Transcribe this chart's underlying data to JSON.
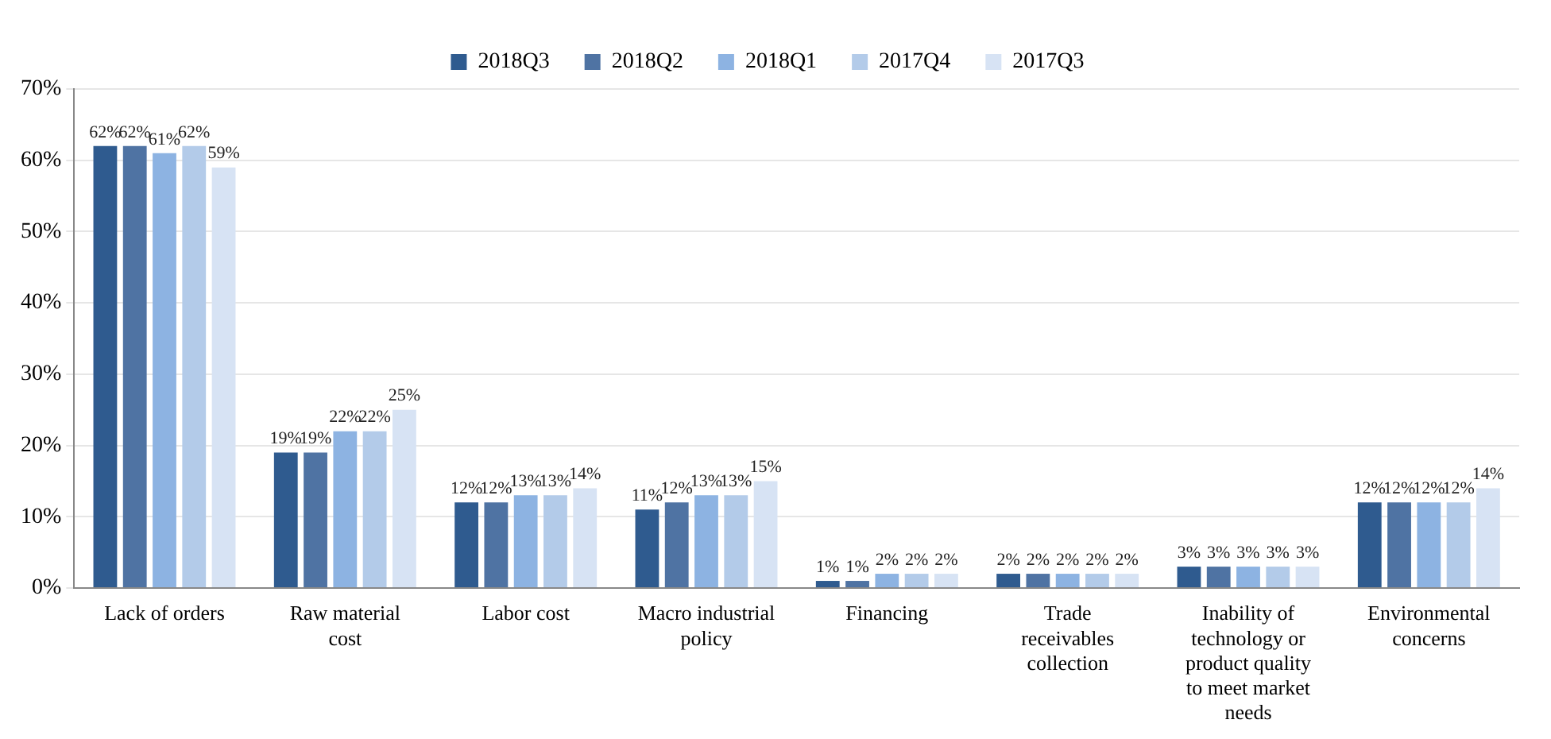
{
  "chart_data": {
    "type": "bar",
    "categories": [
      "Lack of orders",
      "Raw material cost",
      "Labor cost",
      "Macro industrial policy",
      "Financing",
      "Trade receivables collection",
      "Inability of technology or product quality to meet market needs",
      "Environmental concerns"
    ],
    "series": [
      {
        "name": "2018Q3",
        "color": "#2f5b8f",
        "values": [
          62,
          19,
          12,
          11,
          1,
          2,
          3,
          12
        ],
        "value_labels": [
          "62%",
          "19%",
          "12%",
          "11%",
          "1%",
          "2%",
          "3%",
          "12%"
        ]
      },
      {
        "name": "2018Q2",
        "color": "#4f73a3",
        "values": [
          62,
          19,
          12,
          12,
          1,
          2,
          3,
          12
        ],
        "value_labels": [
          "62%",
          "19%",
          "12%",
          "12%",
          "1%",
          "2%",
          "3%",
          "12%"
        ]
      },
      {
        "name": "2018Q1",
        "color": "#8db3e2",
        "values": [
          61,
          22,
          13,
          13,
          2,
          2,
          3,
          12
        ],
        "value_labels": [
          "61%",
          "22%",
          "13%",
          "13%",
          "2%",
          "2%",
          "3%",
          "12%"
        ]
      },
      {
        "name": "2017Q4",
        "color": "#b3cbe9",
        "values": [
          62,
          22,
          13,
          13,
          2,
          2,
          3,
          12
        ],
        "value_labels": [
          "62%",
          "22%",
          "13%",
          "13%",
          "2%",
          "2%",
          "3%",
          "12%"
        ]
      },
      {
        "name": "2017Q3",
        "color": "#d7e3f4",
        "values": [
          59,
          25,
          14,
          15,
          2,
          2,
          3,
          14
        ],
        "value_labels": [
          "59%",
          "25%",
          "14%",
          "15%",
          "2%",
          "2%",
          "3%",
          "14%"
        ]
      }
    ],
    "ylim": [
      0,
      70
    ],
    "yticks": [
      {
        "value": 0,
        "label": "0%"
      },
      {
        "value": 10,
        "label": "10%"
      },
      {
        "value": 20,
        "label": "20%"
      },
      {
        "value": 30,
        "label": "30%"
      },
      {
        "value": 40,
        "label": "40%"
      },
      {
        "value": 50,
        "label": "50%"
      },
      {
        "value": 60,
        "label": "60%"
      },
      {
        "value": 70,
        "label": "70%"
      }
    ],
    "grid": "y",
    "legend": "top"
  }
}
